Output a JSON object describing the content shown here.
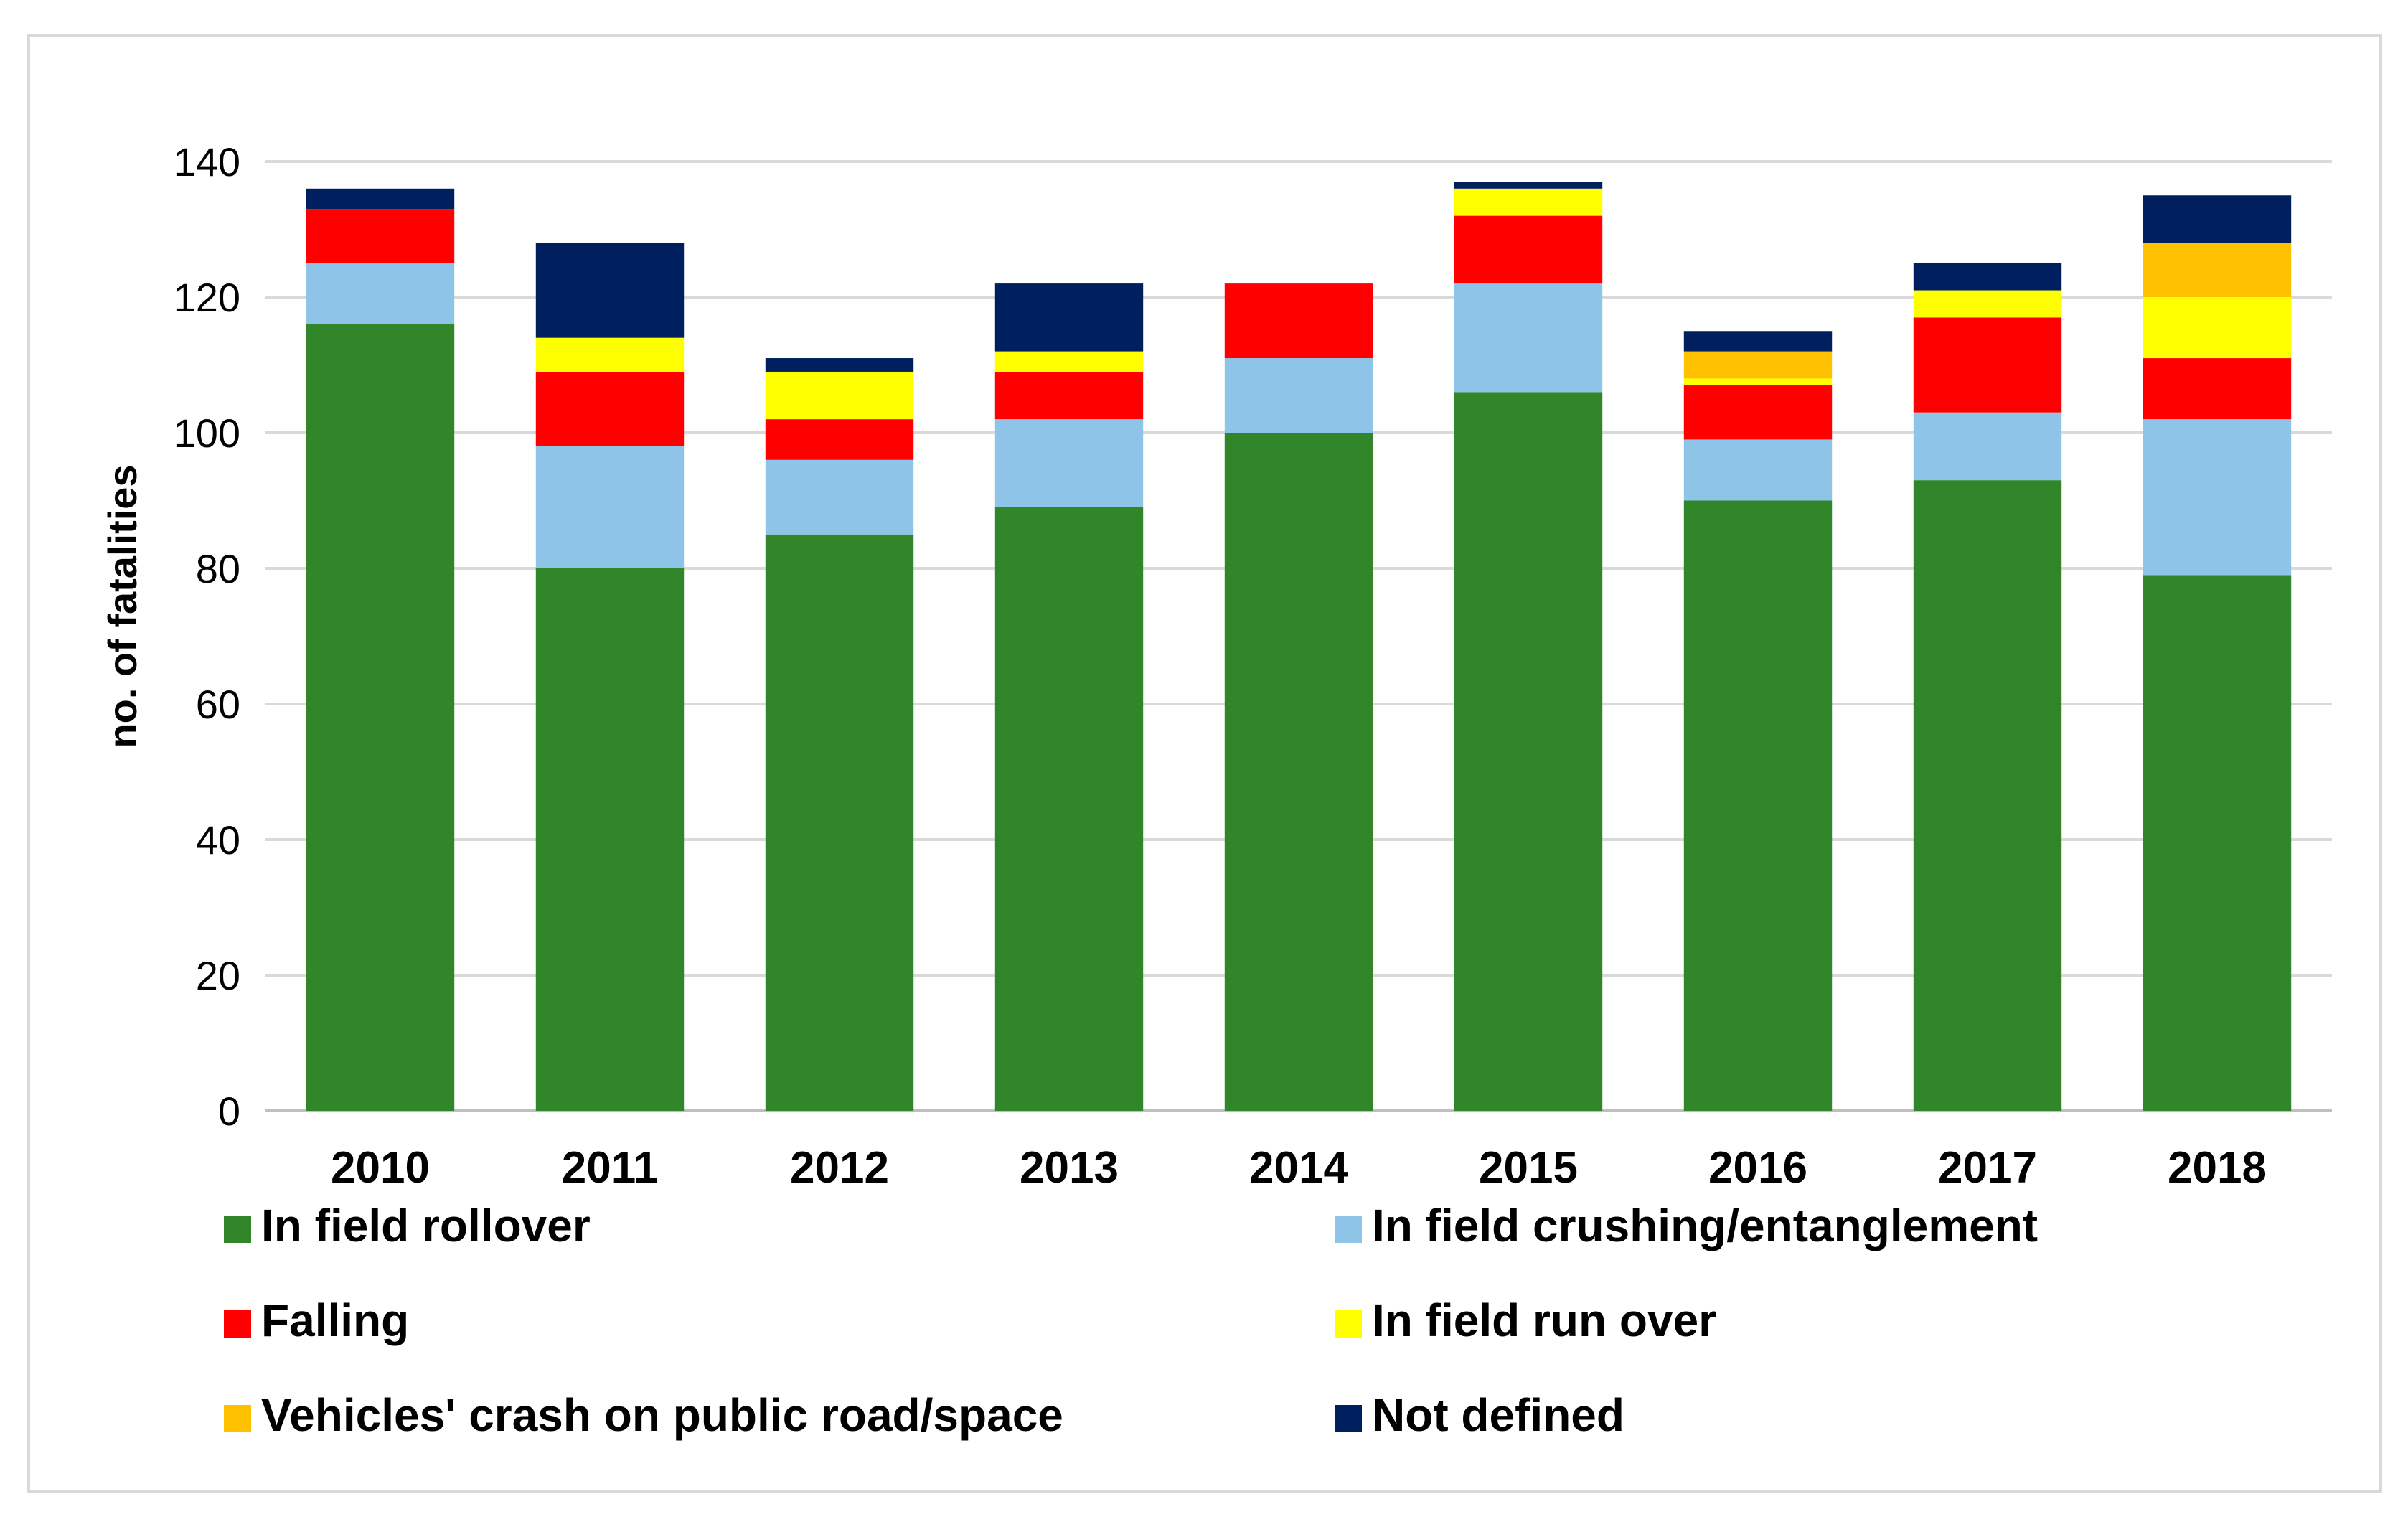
{
  "chart_data": {
    "type": "bar",
    "stacked": true,
    "ylabel": "no. of fatalities",
    "xlabel": "",
    "ylim": [
      0,
      140
    ],
    "yticks": [
      0,
      20,
      40,
      60,
      80,
      100,
      120,
      140
    ],
    "grid": true,
    "legend_position": "bottom",
    "categories": [
      "2010",
      "2011",
      "2012",
      "2013",
      "2014",
      "2015",
      "2016",
      "2017",
      "2018"
    ],
    "series": [
      {
        "name": "In field rollover",
        "color": "#31862a",
        "values": [
          116,
          80,
          85,
          89,
          100,
          106,
          90,
          93,
          79
        ]
      },
      {
        "name": "In field crushing/entanglement",
        "color": "#8ec4e8",
        "values": [
          9,
          18,
          11,
          13,
          11,
          16,
          9,
          10,
          23
        ]
      },
      {
        "name": "Falling",
        "color": "#ff0000",
        "values": [
          8,
          11,
          6,
          7,
          11,
          10,
          8,
          14,
          9
        ]
      },
      {
        "name": "In field run over",
        "color": "#ffff00",
        "values": [
          0,
          5,
          7,
          3,
          0,
          4,
          1,
          4,
          9
        ]
      },
      {
        "name": "Vehicles' crash on public road/space",
        "color": "#ffc000",
        "values": [
          0,
          0,
          0,
          0,
          0,
          0,
          4,
          0,
          8
        ]
      },
      {
        "name": "Not defined",
        "color": "#001f5f",
        "values": [
          3,
          14,
          2,
          10,
          0,
          1,
          3,
          4,
          7
        ]
      }
    ]
  }
}
